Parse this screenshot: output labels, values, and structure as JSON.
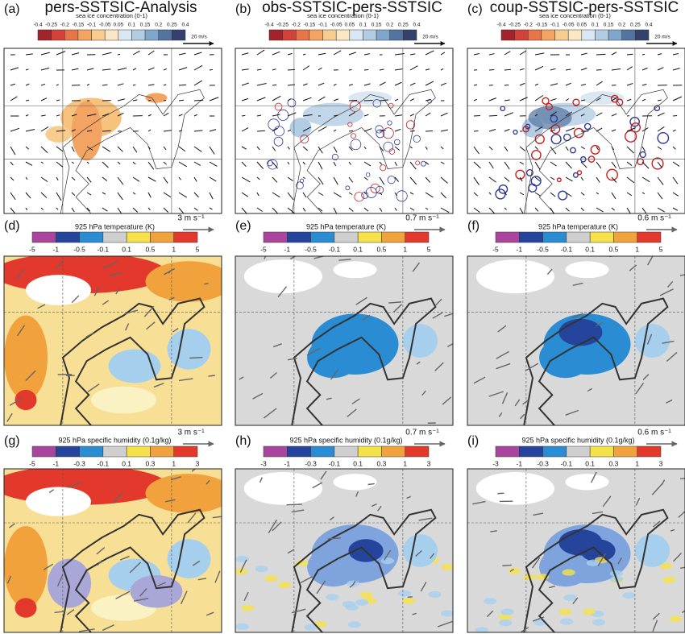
{
  "columns": [
    {
      "title": "pers-SSTSIC-Analysis",
      "rows": [
        {
          "label": "(a)",
          "colorbar_title": "sea ice concentration (0-1)",
          "ticks": [
            "-0.4",
            "-0.25",
            "-0.2",
            "-0.15",
            "-0.1",
            "-0.05",
            "0.05",
            "0.1",
            "0.15",
            "0.2",
            "0.25",
            "0.4"
          ],
          "wind_scale": "20 m/s"
        },
        {
          "label": "(d)",
          "colorbar_title": "925 hPa temperature (K)",
          "ticks": [
            "-5",
            "-1",
            "-0.5",
            "-0.1",
            "0.1",
            "0.5",
            "1",
            "5"
          ],
          "wind_scale": "3 m s⁻¹"
        },
        {
          "label": "(g)",
          "colorbar_title": "925 hPa specific humidity (0.1g/kg)",
          "ticks": [
            "-5",
            "-1",
            "-0.3",
            "-0.1",
            "0.1",
            "0.3",
            "1",
            "3"
          ],
          "wind_scale": "3 m s⁻¹"
        }
      ]
    },
    {
      "title": "obs-SSTSIC-pers-SSTSIC",
      "rows": [
        {
          "label": "(b)",
          "colorbar_title": "sea ice concentration (0-1)",
          "ticks": [
            "-0.4",
            "-0.25",
            "-0.2",
            "-0.15",
            "-0.1",
            "-0.05",
            "0.05",
            "0.1",
            "0.15",
            "0.2",
            "0.25",
            "0.4"
          ],
          "wind_scale": "20 m/s"
        },
        {
          "label": "(e)",
          "colorbar_title": "925 hPa temperature (K)",
          "ticks": [
            "-5",
            "-1",
            "-0.5",
            "-0.1",
            "0.1",
            "0.5",
            "1",
            "5"
          ],
          "wind_scale": "0.7 m s⁻¹"
        },
        {
          "label": "(h)",
          "colorbar_title": "925 hPa specific humidity (0.1g/kg)",
          "ticks": [
            "-3",
            "-1",
            "-0.3",
            "-0.1",
            "0.1",
            "0.3",
            "1",
            "3"
          ],
          "wind_scale": "0.7 m s⁻¹"
        }
      ]
    },
    {
      "title": "coup-SSTSIC-pers-SSTSIC",
      "rows": [
        {
          "label": "(c)",
          "colorbar_title": "sea ice concentration (0-1)",
          "ticks": [
            "-0.4",
            "-0.25",
            "-0.2",
            "-0.15",
            "-0.1",
            "-0.05",
            "0.05",
            "0.1",
            "0.15",
            "0.2",
            "0.25",
            "0.4"
          ],
          "wind_scale": "20 m/s"
        },
        {
          "label": "(f)",
          "colorbar_title": "925 hPa temperature (K)",
          "ticks": [
            "-5",
            "-1",
            "-0.5",
            "-0.1",
            "0.1",
            "0.5",
            "1",
            "5"
          ],
          "wind_scale": "0.6 m s⁻¹"
        },
        {
          "label": "(i)",
          "colorbar_title": "925 hPa specific humidity (0.1g/kg)",
          "ticks": [
            "-3",
            "-1",
            "-0.3",
            "-0.1",
            "0.1",
            "0.3",
            "1",
            "3"
          ],
          "wind_scale": "0.6 m s⁻¹"
        }
      ]
    }
  ]
}
